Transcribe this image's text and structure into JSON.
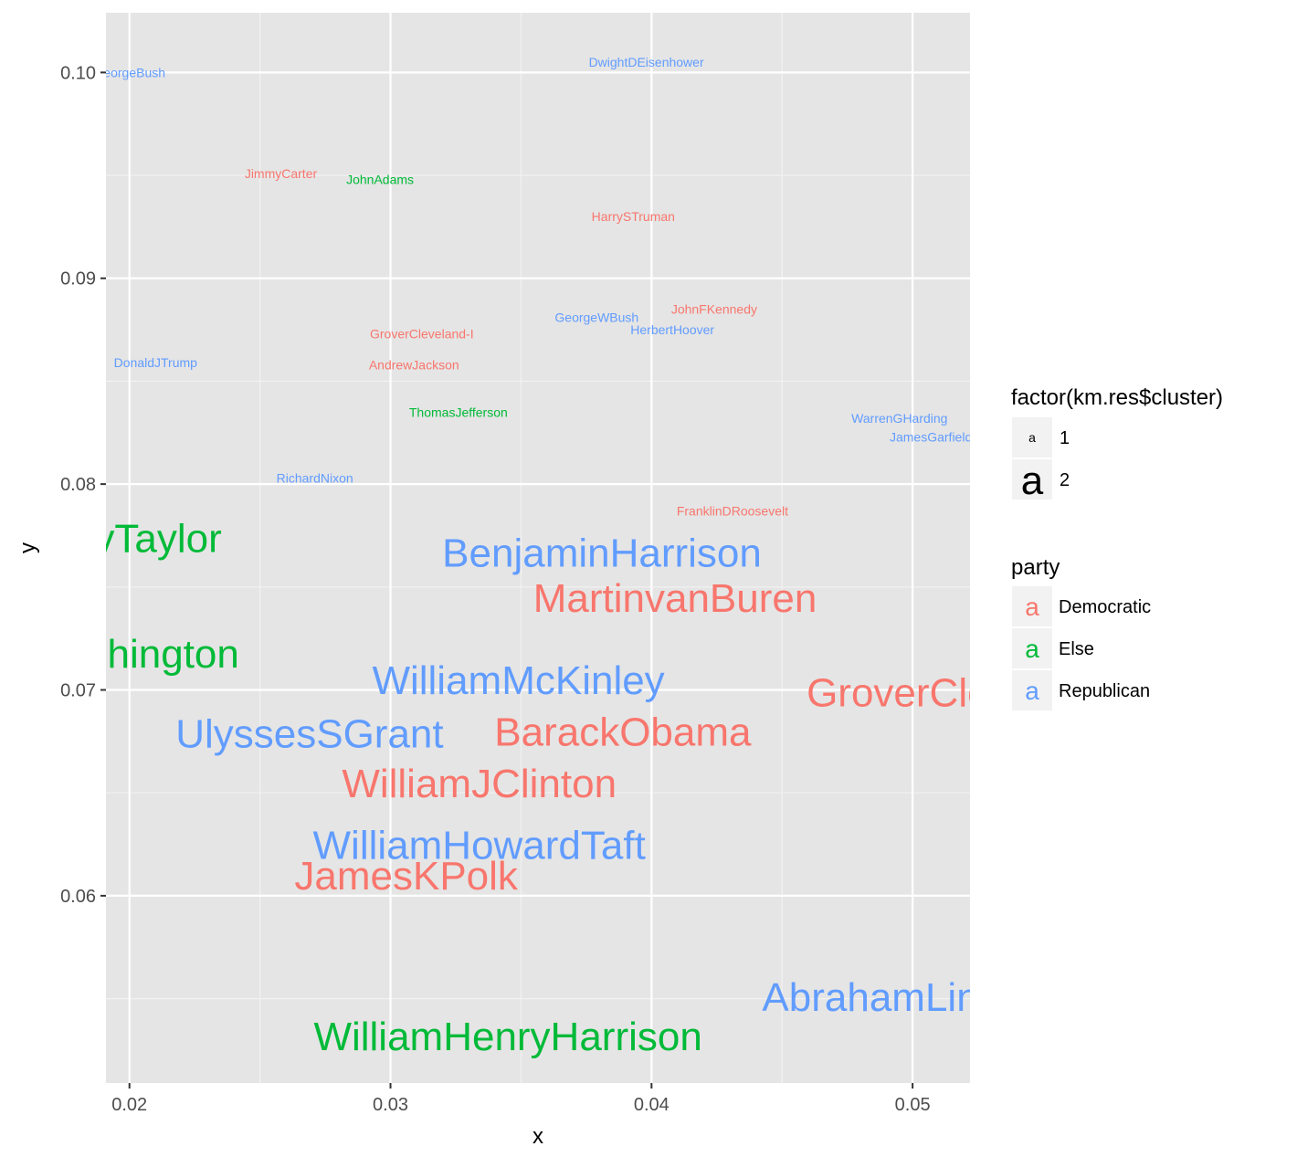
{
  "chart_data": {
    "type": "scatter",
    "title": "",
    "xlabel": "x",
    "ylabel": "y",
    "xlim": [
      0.0191,
      0.0522
    ],
    "ylim": [
      0.0509,
      0.1029
    ],
    "x_ticks": [
      0.02,
      0.03,
      0.04,
      0.05
    ],
    "x_tick_labels": [
      "0.02",
      "0.03",
      "0.04",
      "0.05"
    ],
    "y_ticks": [
      0.06,
      0.07,
      0.08,
      0.09,
      0.1
    ],
    "y_tick_labels": [
      "0.06",
      "0.07",
      "0.08",
      "0.09",
      "0.10"
    ],
    "grid": true,
    "panel_background": "#e5e5e5",
    "party_colors": {
      "Democratic": "#f8766d",
      "Else": "#00ba38",
      "Republican": "#619cff"
    },
    "points": [
      {
        "label": "GeorgeBush",
        "x": 0.02,
        "y": 0.1,
        "party": "Republican",
        "cluster": "1"
      },
      {
        "label": "DwightDEisenhower",
        "x": 0.0398,
        "y": 0.1005,
        "party": "Republican",
        "cluster": "1"
      },
      {
        "label": "JimmyCarter",
        "x": 0.0258,
        "y": 0.0951,
        "party": "Democratic",
        "cluster": "1"
      },
      {
        "label": "JohnAdams",
        "x": 0.0296,
        "y": 0.0948,
        "party": "Else",
        "cluster": "1"
      },
      {
        "label": "HarrySTruman",
        "x": 0.0393,
        "y": 0.093,
        "party": "Democratic",
        "cluster": "1"
      },
      {
        "label": "JohnFKennedy",
        "x": 0.0424,
        "y": 0.0885,
        "party": "Democratic",
        "cluster": "1"
      },
      {
        "label": "GeorgeWBush",
        "x": 0.0379,
        "y": 0.0881,
        "party": "Republican",
        "cluster": "1"
      },
      {
        "label": "HerbertHoover",
        "x": 0.0408,
        "y": 0.0875,
        "party": "Republican",
        "cluster": "1"
      },
      {
        "label": "GroverCleveland-I",
        "x": 0.0312,
        "y": 0.0873,
        "party": "Democratic",
        "cluster": "1"
      },
      {
        "label": "DonaldJTrump",
        "x": 0.021,
        "y": 0.0859,
        "party": "Republican",
        "cluster": "1"
      },
      {
        "label": "AndrewJackson",
        "x": 0.0309,
        "y": 0.0858,
        "party": "Democratic",
        "cluster": "1"
      },
      {
        "label": "ThomasJefferson",
        "x": 0.0326,
        "y": 0.0835,
        "party": "Else",
        "cluster": "1"
      },
      {
        "label": "WarrenGHarding",
        "x": 0.0495,
        "y": 0.0832,
        "party": "Republican",
        "cluster": "1"
      },
      {
        "label": "JamesGarfield",
        "x": 0.0507,
        "y": 0.0823,
        "party": "Republican",
        "cluster": "1"
      },
      {
        "label": "RichardNixon",
        "x": 0.0271,
        "y": 0.0803,
        "party": "Republican",
        "cluster": "1"
      },
      {
        "label": "FranklinDRoosevelt",
        "x": 0.0431,
        "y": 0.0787,
        "party": "Democratic",
        "cluster": "1"
      },
      {
        "label": "ZacharyTaylor",
        "x": 0.0187,
        "y": 0.0774,
        "party": "Else",
        "cluster": "2"
      },
      {
        "label": "BenjaminHarrison",
        "x": 0.0381,
        "y": 0.0767,
        "party": "Republican",
        "cluster": "2"
      },
      {
        "label": "MartinvanBuren",
        "x": 0.0409,
        "y": 0.0745,
        "party": "Democratic",
        "cluster": "2"
      },
      {
        "label": "GeorgeWashington",
        "x": 0.0176,
        "y": 0.0718,
        "party": "Else",
        "cluster": "2"
      },
      {
        "label": "WilliamMcKinley",
        "x": 0.0349,
        "y": 0.0705,
        "party": "Republican",
        "cluster": "2"
      },
      {
        "label": "GroverCleveland-II",
        "x": 0.0524,
        "y": 0.0699,
        "party": "Democratic",
        "cluster": "2"
      },
      {
        "label": "UlyssesSGrant",
        "x": 0.0269,
        "y": 0.0679,
        "party": "Republican",
        "cluster": "2"
      },
      {
        "label": "BarackObama",
        "x": 0.0389,
        "y": 0.068,
        "party": "Democratic",
        "cluster": "2"
      },
      {
        "label": "WilliamJClinton",
        "x": 0.0334,
        "y": 0.0655,
        "party": "Democratic",
        "cluster": "2"
      },
      {
        "label": "WilliamHowardTaft",
        "x": 0.0334,
        "y": 0.0625,
        "party": "Republican",
        "cluster": "2"
      },
      {
        "label": "JamesKPolk",
        "x": 0.0306,
        "y": 0.061,
        "party": "Democratic",
        "cluster": "2"
      },
      {
        "label": "AbrahamLincoln",
        "x": 0.0498,
        "y": 0.0551,
        "party": "Republican",
        "cluster": "2"
      },
      {
        "label": "WilliamHenryHarrison",
        "x": 0.0345,
        "y": 0.0532,
        "party": "Else",
        "cluster": "2"
      }
    ],
    "legends": [
      {
        "title": "factor(km.res$cluster)",
        "key_glyph": "a",
        "items": [
          {
            "label": "1",
            "key": "1"
          },
          {
            "label": "2",
            "key": "2"
          }
        ]
      },
      {
        "title": "party",
        "key_glyph": "a",
        "items": [
          {
            "label": "Democratic",
            "key": "Democratic"
          },
          {
            "label": "Else",
            "key": "Else"
          },
          {
            "label": "Republican",
            "key": "Republican"
          }
        ]
      }
    ],
    "legend_position": "right"
  }
}
